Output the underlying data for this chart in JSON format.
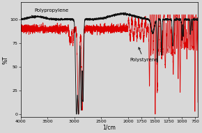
{
  "xlabel": "1/cm",
  "ylabel": "%T",
  "xlim": [
    4000,
    700
  ],
  "ylim": [
    -3,
    118
  ],
  "yticks": [
    0,
    25,
    50,
    75,
    100
  ],
  "xticks": [
    4000,
    3500,
    3000,
    2500,
    2000,
    1750,
    1500,
    1250,
    1000,
    750
  ],
  "bg_color": "#d8d8d8",
  "pp_color": "#111111",
  "ps_color": "#dd0000",
  "label_pp": "Polypropylene",
  "label_ps": "Polystyrene"
}
